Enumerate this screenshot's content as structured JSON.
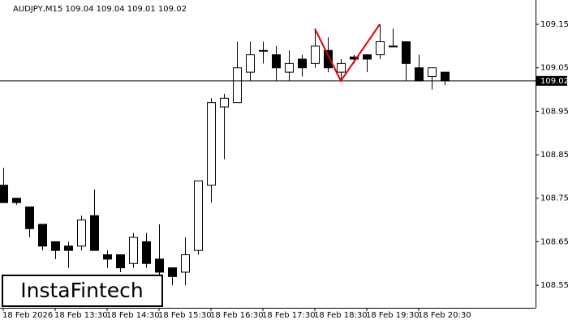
{
  "chart_data": {
    "type": "candlestick",
    "title": "AUDJPY,M15  109.04 109.04 109.01 109.02",
    "watermark": "InstaFintech",
    "categories": [
      "18 Feb 2026",
      null,
      null,
      null,
      "18 Feb 13:30",
      null,
      null,
      null,
      "18 Feb 14:30",
      null,
      null,
      null,
      "18 Feb 15:30",
      null,
      null,
      null,
      "18 Feb 16:30",
      null,
      null,
      null,
      "18 Feb 17:30",
      null,
      null,
      null,
      "18 Feb 18:30",
      null,
      null,
      null,
      "18 Feb 19:30",
      null,
      null,
      null,
      "18 Feb 20:30",
      null,
      null
    ],
    "open": [
      108.78,
      108.75,
      108.73,
      108.69,
      108.65,
      108.64,
      108.64,
      108.71,
      108.62,
      108.62,
      108.6,
      108.65,
      108.61,
      108.59,
      108.58,
      108.63,
      108.78,
      108.96,
      108.97,
      109.04,
      109.09,
      109.08,
      109.04,
      109.07,
      109.06,
      109.09,
      109.04,
      109.075,
      109.08,
      109.08,
      109.1,
      109.11,
      109.05,
      109.03,
      109.04
    ],
    "high": [
      108.82,
      108.75,
      108.73,
      108.69,
      108.65,
      108.65,
      108.71,
      108.77,
      108.63,
      108.62,
      108.67,
      108.67,
      108.69,
      108.59,
      108.66,
      108.79,
      108.98,
      108.99,
      109.11,
      109.11,
      109.11,
      109.1,
      109.09,
      109.08,
      109.14,
      109.12,
      109.07,
      109.08,
      109.08,
      109.15,
      109.14,
      109.11,
      109.08,
      109.05,
      109.04
    ],
    "low": [
      108.74,
      108.735,
      108.66,
      108.63,
      108.61,
      108.59,
      108.63,
      108.63,
      108.59,
      108.58,
      108.59,
      108.59,
      108.57,
      108.55,
      108.55,
      108.62,
      108.74,
      108.84,
      108.97,
      109.02,
      109.06,
      109.02,
      109.02,
      109.03,
      109.05,
      109.04,
      109.02,
      109.06,
      109.04,
      109.07,
      109.1,
      109.02,
      109.02,
      109.0,
      109.01
    ],
    "close": [
      108.74,
      108.74,
      108.68,
      108.64,
      108.63,
      108.63,
      108.7,
      108.63,
      108.61,
      108.59,
      108.66,
      108.6,
      108.58,
      108.57,
      108.62,
      108.79,
      108.97,
      108.98,
      109.05,
      109.08,
      109.09,
      109.05,
      109.06,
      109.05,
      109.1,
      109.05,
      109.06,
      109.07,
      109.07,
      109.11,
      109.1,
      109.06,
      109.02,
      109.05,
      109.02
    ],
    "up_color": "#ffffff",
    "down_color": "#000000",
    "ylim": [
      108.498,
      109.206
    ],
    "yticks": [
      108.55,
      108.65,
      108.75,
      108.85,
      108.95,
      109.05,
      109.15
    ],
    "last_price": 109.02,
    "pattern": {
      "color": "#e00000",
      "x": [
        24,
        26,
        29
      ],
      "y": [
        109.14,
        109.02,
        109.15
      ]
    }
  }
}
